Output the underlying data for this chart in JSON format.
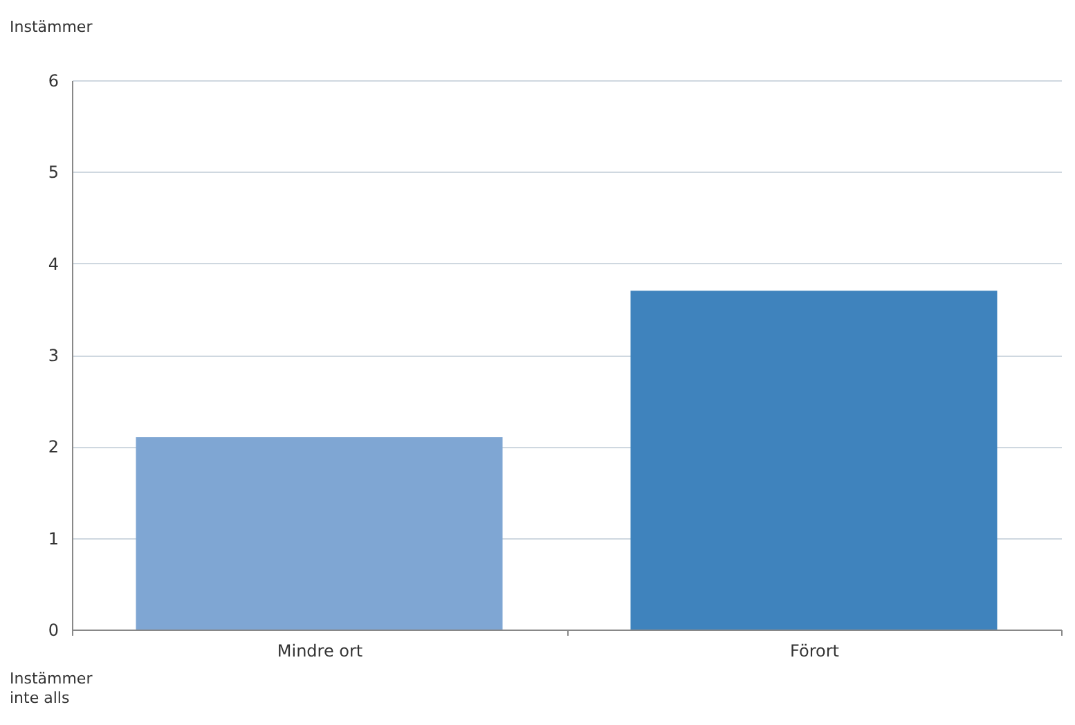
{
  "chart_data": {
    "type": "bar",
    "ylabel": "Instämmer",
    "categories": [
      "Mindre ort",
      "Förort"
    ],
    "values": [
      2.1,
      3.7
    ],
    "colors": [
      "#7fa6d3",
      "#3f83bd"
    ],
    "ylim": [
      0,
      6
    ],
    "yticks": [
      0,
      1,
      2,
      3,
      4,
      5,
      6
    ],
    "grid": "y",
    "annotations": [
      "Instämmer inte alls"
    ]
  }
}
